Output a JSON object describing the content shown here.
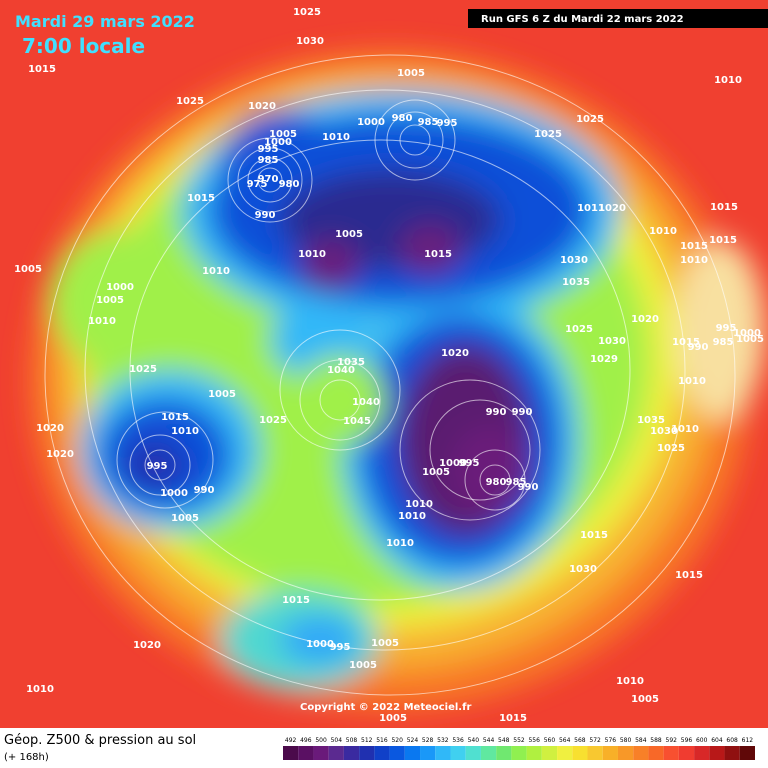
{
  "header": {
    "date": "Mardi 29 mars 2022",
    "time": "7:00 locale",
    "run": "Run GFS 6 Z du Mardi 22 mars 2022"
  },
  "footer": {
    "title": "Géop. Z500 & pression au sol",
    "lead": "(+ 168h)",
    "copyright": "Copyright © 2022 Meteociel.fr"
  },
  "colorbar": {
    "ticks": [
      492,
      496,
      500,
      504,
      508,
      512,
      516,
      520,
      524,
      528,
      532,
      536,
      540,
      544,
      548,
      552,
      556,
      560,
      564,
      568,
      572,
      576,
      580,
      584,
      588,
      592,
      596,
      600,
      604,
      608,
      612
    ],
    "colors": [
      "#4b0a4b",
      "#5a1063",
      "#6a1a7a",
      "#5b2a90",
      "#3a2aa0",
      "#2030b0",
      "#1040c8",
      "#0a58e0",
      "#0a78f0",
      "#1a98f8",
      "#30b8f8",
      "#40d0f0",
      "#50e0d0",
      "#60e8a0",
      "#70e870",
      "#90f050",
      "#b0f040",
      "#d0f040",
      "#f0f040",
      "#f8e030",
      "#f8c830",
      "#f8b028",
      "#f89828",
      "#f88028",
      "#f86828",
      "#f85030",
      "#f03c30",
      "#d82828",
      "#b81818",
      "#901010",
      "#600808"
    ]
  },
  "isobar_labels": [
    "1025",
    "1030",
    "1015",
    "1025",
    "1020",
    "1005",
    "1010",
    "1005",
    "1000",
    "995",
    "985",
    "975",
    "970",
    "980",
    "990",
    "1010",
    "1000",
    "980",
    "985",
    "995",
    "1025",
    "1025",
    "1015",
    "1005",
    "1010",
    "1015",
    "1011",
    "1020",
    "1010",
    "1015",
    "1015",
    "1015",
    "1010",
    "1005",
    "1010",
    "1030",
    "1035",
    "1000",
    "1005",
    "1010",
    "1025",
    "1020",
    "995",
    "1000",
    "985",
    "1005",
    "1030",
    "1015",
    "1020",
    "1029",
    "1035",
    "1040",
    "1025",
    "990",
    "1010",
    "1005",
    "1040",
    "990",
    "990",
    "1015",
    "1025",
    "1045",
    "1035",
    "1010",
    "1020",
    "1030",
    "1010",
    "995",
    "1000",
    "995",
    "1005",
    "1025",
    "1020",
    "980",
    "985",
    "990",
    "1000",
    "990",
    "1010",
    "1010",
    "1005",
    "1010",
    "1015",
    "1030",
    "1015",
    "1015",
    "1000",
    "995",
    "1005",
    "1020",
    "1005",
    "1010",
    "1010",
    "1005",
    "1005",
    "1015"
  ]
}
